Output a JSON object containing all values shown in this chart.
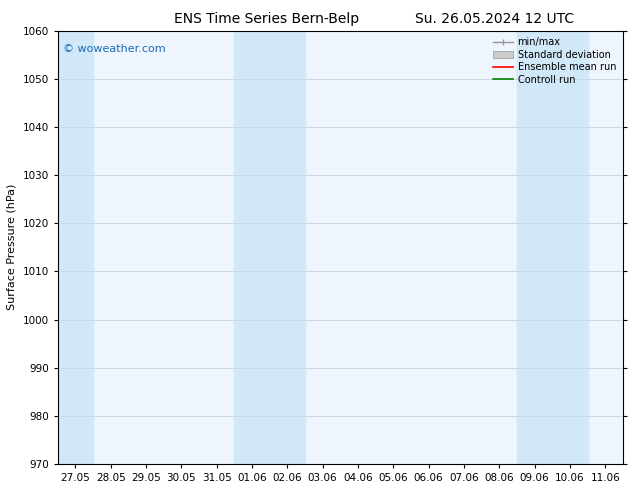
{
  "title_left": "ENS Time Series Bern-Belp",
  "title_right": "Su. 26.05.2024 12 UTC",
  "ylabel": "Surface Pressure (hPa)",
  "ylim": [
    970,
    1060
  ],
  "yticks": [
    970,
    980,
    990,
    1000,
    1010,
    1020,
    1030,
    1040,
    1050,
    1060
  ],
  "xtick_labels": [
    "27.05",
    "28.05",
    "29.05",
    "30.05",
    "31.05",
    "01.06",
    "02.06",
    "03.06",
    "04.06",
    "05.06",
    "06.06",
    "07.06",
    "08.06",
    "09.06",
    "10.06",
    "11.06"
  ],
  "background_color": "#ffffff",
  "plot_bg_color": "#eef5fc",
  "shade_color": "#d0e8f8",
  "watermark_text": "© woweather.com",
  "watermark_color": "#1a6bb5",
  "legend_entries": [
    "min/max",
    "Standard deviation",
    "Ensemble mean run",
    "Controll run"
  ],
  "legend_colors": [
    "#999999",
    "#cccccc",
    "#ff0000",
    "#008000"
  ],
  "grid_color": "#c8d8e8",
  "font_size_title": 10,
  "font_size_ylabel": 8,
  "font_size_ticks": 7.5,
  "font_size_legend": 7,
  "font_size_watermark": 8
}
